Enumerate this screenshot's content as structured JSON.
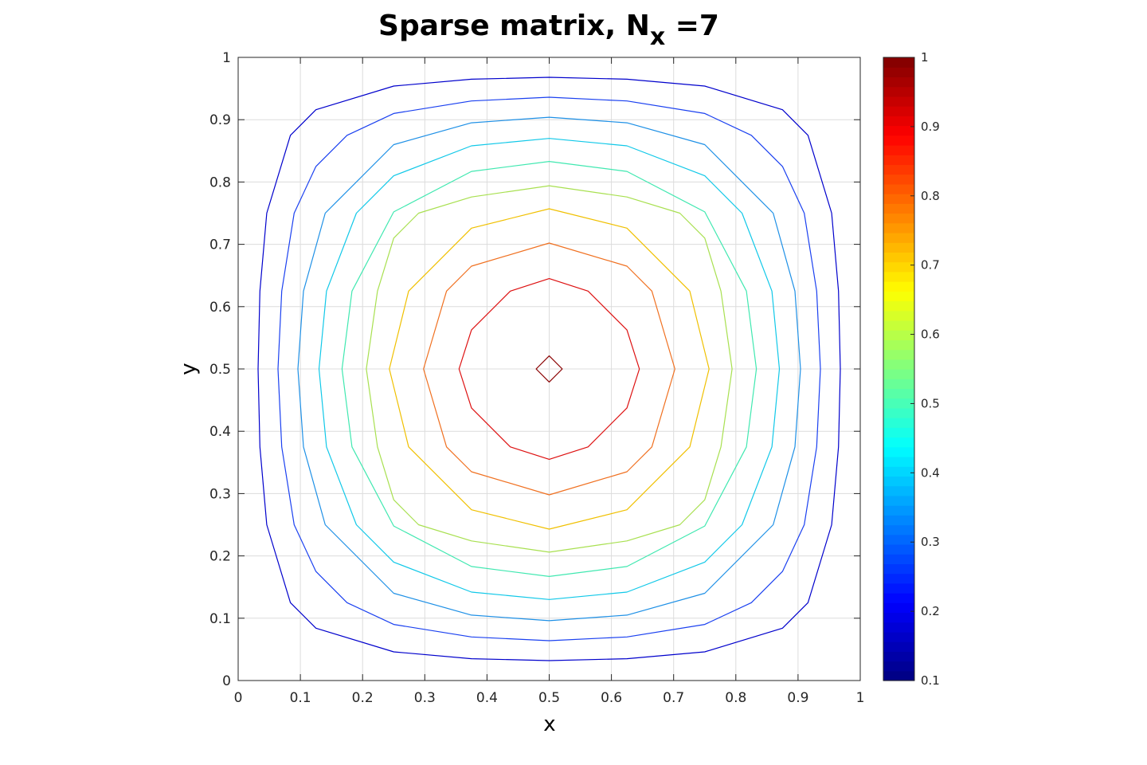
{
  "chart_data": {
    "type": "contour",
    "title": "Sparse matrix, N",
    "title_subscript": "x",
    "title_suffix": " =7",
    "xlabel": "x",
    "ylabel": "y",
    "xlim": [
      0,
      1
    ],
    "ylim": [
      0,
      1
    ],
    "xticks": [
      "0",
      "0.1",
      "0.2",
      "0.3",
      "0.4",
      "0.5",
      "0.6",
      "0.7",
      "0.8",
      "0.9",
      "1"
    ],
    "yticks": [
      "0",
      "0.1",
      "0.2",
      "0.3",
      "0.4",
      "0.5",
      "0.6",
      "0.7",
      "0.8",
      "0.9",
      "1"
    ],
    "grid": true,
    "colormap": "jet",
    "colorbar": {
      "location": "right",
      "range": [
        0.1,
        1
      ],
      "ticks": [
        "0.1",
        "0.2",
        "0.3",
        "0.4",
        "0.5",
        "0.6",
        "0.7",
        "0.8",
        "0.9",
        "1"
      ]
    },
    "contours": [
      {
        "level": 0.2,
        "color": "#0000cc",
        "points": [
          [
            0.5,
            0.968
          ],
          [
            0.625,
            0.965
          ],
          [
            0.75,
            0.954
          ],
          [
            0.875,
            0.916
          ],
          [
            0.916,
            0.875
          ],
          [
            0.954,
            0.75
          ],
          [
            0.965,
            0.625
          ],
          [
            0.968,
            0.5
          ],
          [
            0.965,
            0.375
          ],
          [
            0.954,
            0.25
          ],
          [
            0.916,
            0.125
          ],
          [
            0.875,
            0.084
          ],
          [
            0.75,
            0.046
          ],
          [
            0.625,
            0.035
          ],
          [
            0.5,
            0.032
          ],
          [
            0.375,
            0.035
          ],
          [
            0.25,
            0.046
          ],
          [
            0.125,
            0.084
          ],
          [
            0.084,
            0.125
          ],
          [
            0.046,
            0.25
          ],
          [
            0.035,
            0.375
          ],
          [
            0.032,
            0.5
          ],
          [
            0.035,
            0.625
          ],
          [
            0.046,
            0.75
          ],
          [
            0.084,
            0.875
          ],
          [
            0.125,
            0.916
          ],
          [
            0.25,
            0.954
          ],
          [
            0.375,
            0.965
          ]
        ]
      },
      {
        "level": 0.29,
        "color": "#1a40f0",
        "points": [
          [
            0.5,
            0.936
          ],
          [
            0.625,
            0.93
          ],
          [
            0.75,
            0.91
          ],
          [
            0.825,
            0.875
          ],
          [
            0.875,
            0.825
          ],
          [
            0.91,
            0.75
          ],
          [
            0.93,
            0.625
          ],
          [
            0.936,
            0.5
          ],
          [
            0.93,
            0.375
          ],
          [
            0.91,
            0.25
          ],
          [
            0.875,
            0.175
          ],
          [
            0.825,
            0.125
          ],
          [
            0.75,
            0.09
          ],
          [
            0.625,
            0.07
          ],
          [
            0.5,
            0.064
          ],
          [
            0.375,
            0.07
          ],
          [
            0.25,
            0.09
          ],
          [
            0.175,
            0.125
          ],
          [
            0.125,
            0.175
          ],
          [
            0.09,
            0.25
          ],
          [
            0.07,
            0.375
          ],
          [
            0.064,
            0.5
          ],
          [
            0.07,
            0.625
          ],
          [
            0.09,
            0.75
          ],
          [
            0.125,
            0.825
          ],
          [
            0.175,
            0.875
          ],
          [
            0.25,
            0.91
          ],
          [
            0.375,
            0.93
          ]
        ]
      },
      {
        "level": 0.36,
        "color": "#1e90e6",
        "points": [
          [
            0.5,
            0.904
          ],
          [
            0.625,
            0.895
          ],
          [
            0.75,
            0.86
          ],
          [
            0.86,
            0.75
          ],
          [
            0.895,
            0.625
          ],
          [
            0.904,
            0.5
          ],
          [
            0.895,
            0.375
          ],
          [
            0.86,
            0.25
          ],
          [
            0.75,
            0.14
          ],
          [
            0.625,
            0.105
          ],
          [
            0.5,
            0.096
          ],
          [
            0.375,
            0.105
          ],
          [
            0.25,
            0.14
          ],
          [
            0.14,
            0.25
          ],
          [
            0.105,
            0.375
          ],
          [
            0.096,
            0.5
          ],
          [
            0.105,
            0.625
          ],
          [
            0.14,
            0.75
          ],
          [
            0.25,
            0.86
          ],
          [
            0.375,
            0.895
          ]
        ]
      },
      {
        "level": 0.43,
        "color": "#10c8e8",
        "points": [
          [
            0.5,
            0.87
          ],
          [
            0.625,
            0.858
          ],
          [
            0.75,
            0.81
          ],
          [
            0.81,
            0.75
          ],
          [
            0.858,
            0.625
          ],
          [
            0.87,
            0.5
          ],
          [
            0.858,
            0.375
          ],
          [
            0.81,
            0.25
          ],
          [
            0.75,
            0.19
          ],
          [
            0.625,
            0.142
          ],
          [
            0.5,
            0.13
          ],
          [
            0.375,
            0.142
          ],
          [
            0.25,
            0.19
          ],
          [
            0.19,
            0.25
          ],
          [
            0.142,
            0.375
          ],
          [
            0.13,
            0.5
          ],
          [
            0.142,
            0.625
          ],
          [
            0.19,
            0.75
          ],
          [
            0.25,
            0.81
          ],
          [
            0.375,
            0.858
          ]
        ]
      },
      {
        "level": 0.5,
        "color": "#40e8b0",
        "points": [
          [
            0.5,
            0.833
          ],
          [
            0.625,
            0.817
          ],
          [
            0.75,
            0.752
          ],
          [
            0.817,
            0.625
          ],
          [
            0.833,
            0.5
          ],
          [
            0.817,
            0.375
          ],
          [
            0.75,
            0.248
          ],
          [
            0.625,
            0.183
          ],
          [
            0.5,
            0.167
          ],
          [
            0.375,
            0.183
          ],
          [
            0.25,
            0.248
          ],
          [
            0.183,
            0.375
          ],
          [
            0.167,
            0.5
          ],
          [
            0.183,
            0.625
          ],
          [
            0.25,
            0.752
          ],
          [
            0.375,
            0.817
          ]
        ]
      },
      {
        "level": 0.57,
        "color": "#a8e050",
        "points": [
          [
            0.5,
            0.794
          ],
          [
            0.625,
            0.776
          ],
          [
            0.71,
            0.75
          ],
          [
            0.75,
            0.71
          ],
          [
            0.776,
            0.625
          ],
          [
            0.794,
            0.5
          ],
          [
            0.776,
            0.375
          ],
          [
            0.75,
            0.29
          ],
          [
            0.71,
            0.25
          ],
          [
            0.625,
            0.224
          ],
          [
            0.5,
            0.206
          ],
          [
            0.375,
            0.224
          ],
          [
            0.29,
            0.25
          ],
          [
            0.25,
            0.29
          ],
          [
            0.224,
            0.375
          ],
          [
            0.206,
            0.5
          ],
          [
            0.224,
            0.625
          ],
          [
            0.25,
            0.71
          ],
          [
            0.29,
            0.75
          ],
          [
            0.375,
            0.776
          ]
        ]
      },
      {
        "level": 0.64,
        "color": "#f0c000",
        "points": [
          [
            0.5,
            0.757
          ],
          [
            0.625,
            0.726
          ],
          [
            0.726,
            0.625
          ],
          [
            0.757,
            0.5
          ],
          [
            0.726,
            0.375
          ],
          [
            0.625,
            0.274
          ],
          [
            0.5,
            0.243
          ],
          [
            0.375,
            0.274
          ],
          [
            0.274,
            0.375
          ],
          [
            0.243,
            0.5
          ],
          [
            0.274,
            0.625
          ],
          [
            0.375,
            0.726
          ]
        ]
      },
      {
        "level": 0.71,
        "color": "#f07020",
        "points": [
          [
            0.5,
            0.702
          ],
          [
            0.625,
            0.665
          ],
          [
            0.665,
            0.625
          ],
          [
            0.702,
            0.5
          ],
          [
            0.665,
            0.375
          ],
          [
            0.625,
            0.335
          ],
          [
            0.5,
            0.298
          ],
          [
            0.375,
            0.335
          ],
          [
            0.335,
            0.375
          ],
          [
            0.298,
            0.5
          ],
          [
            0.335,
            0.625
          ],
          [
            0.375,
            0.665
          ]
        ]
      },
      {
        "level": 0.78,
        "color": "#dd1010",
        "points": [
          [
            0.5,
            0.645
          ],
          [
            0.5625,
            0.625
          ],
          [
            0.625,
            0.5625
          ],
          [
            0.645,
            0.5
          ],
          [
            0.625,
            0.4375
          ],
          [
            0.5625,
            0.375
          ],
          [
            0.5,
            0.355
          ],
          [
            0.4375,
            0.375
          ],
          [
            0.375,
            0.4375
          ],
          [
            0.355,
            0.5
          ],
          [
            0.375,
            0.5625
          ],
          [
            0.4375,
            0.625
          ]
        ]
      },
      {
        "level": 0.85,
        "color": "#8a0000",
        "points": [
          [
            0.5,
            0.521
          ],
          [
            0.521,
            0.5
          ],
          [
            0.5,
            0.479
          ],
          [
            0.479,
            0.5
          ]
        ]
      }
    ]
  }
}
